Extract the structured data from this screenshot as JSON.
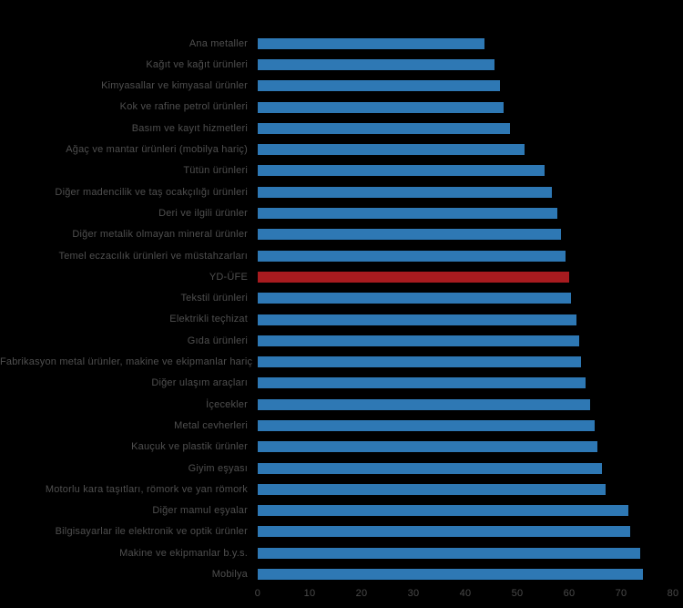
{
  "chart": {
    "background_color": "#000000",
    "bar_color": "#2E78B4",
    "highlight_bar_color": "#A81B1F",
    "label_color": "#4F4F4F",
    "tick_label_color": "#4A4A4A"
  },
  "chart_data": {
    "type": "bar",
    "orientation": "horizontal",
    "title": "",
    "xlabel": "",
    "ylabel": "",
    "xlim": [
      0,
      80
    ],
    "x_ticks": [
      0,
      10,
      20,
      30,
      40,
      50,
      60,
      70,
      80
    ],
    "grid": false,
    "legend": false,
    "highlight_category": "YD-ÜFE",
    "categories": [
      "Ana metaller",
      "Kağıt ve kağıt ürünleri",
      "Kimyasallar ve kimyasal ürünler",
      "Kok ve rafine petrol ürünleri",
      "Basım ve kayıt hizmetleri",
      "Ağaç ve mantar ürünleri (mobilya hariç)",
      "Tütün ürünleri",
      "Diğer madencilik ve taş ocakçılığı ürünleri",
      "Deri ve ilgili ürünler",
      "Diğer metalik olmayan mineral ürünler",
      "Temel eczacılık ürünleri ve müstahzarları",
      "YD-ÜFE",
      "Tekstil ürünleri",
      "Elektrikli teçhizat",
      "Gıda ürünleri",
      "Fabrikasyon metal ürünler, makine ve ekipmanlar hariç",
      "Diğer ulaşım araçları",
      "İçecekler",
      "Metal cevherleri",
      "Kauçuk ve plastik ürünler",
      "Giyim eşyası",
      "Motorlu kara taşıtları, römork ve yan römork",
      "Diğer mamul eşyalar",
      "Bilgisayarlar ile elektronik ve optik ürünler",
      "Makine ve ekipmanlar b.y.s.",
      "Mobilya"
    ],
    "values": [
      43.7,
      45.6,
      46.7,
      47.4,
      48.6,
      51.4,
      55.3,
      56.7,
      57.7,
      58.4,
      59.3,
      60.0,
      60.4,
      61.4,
      61.9,
      62.3,
      63.2,
      64.0,
      64.9,
      65.4,
      66.3,
      67.0,
      71.4,
      71.8,
      73.7,
      74.2
    ]
  }
}
